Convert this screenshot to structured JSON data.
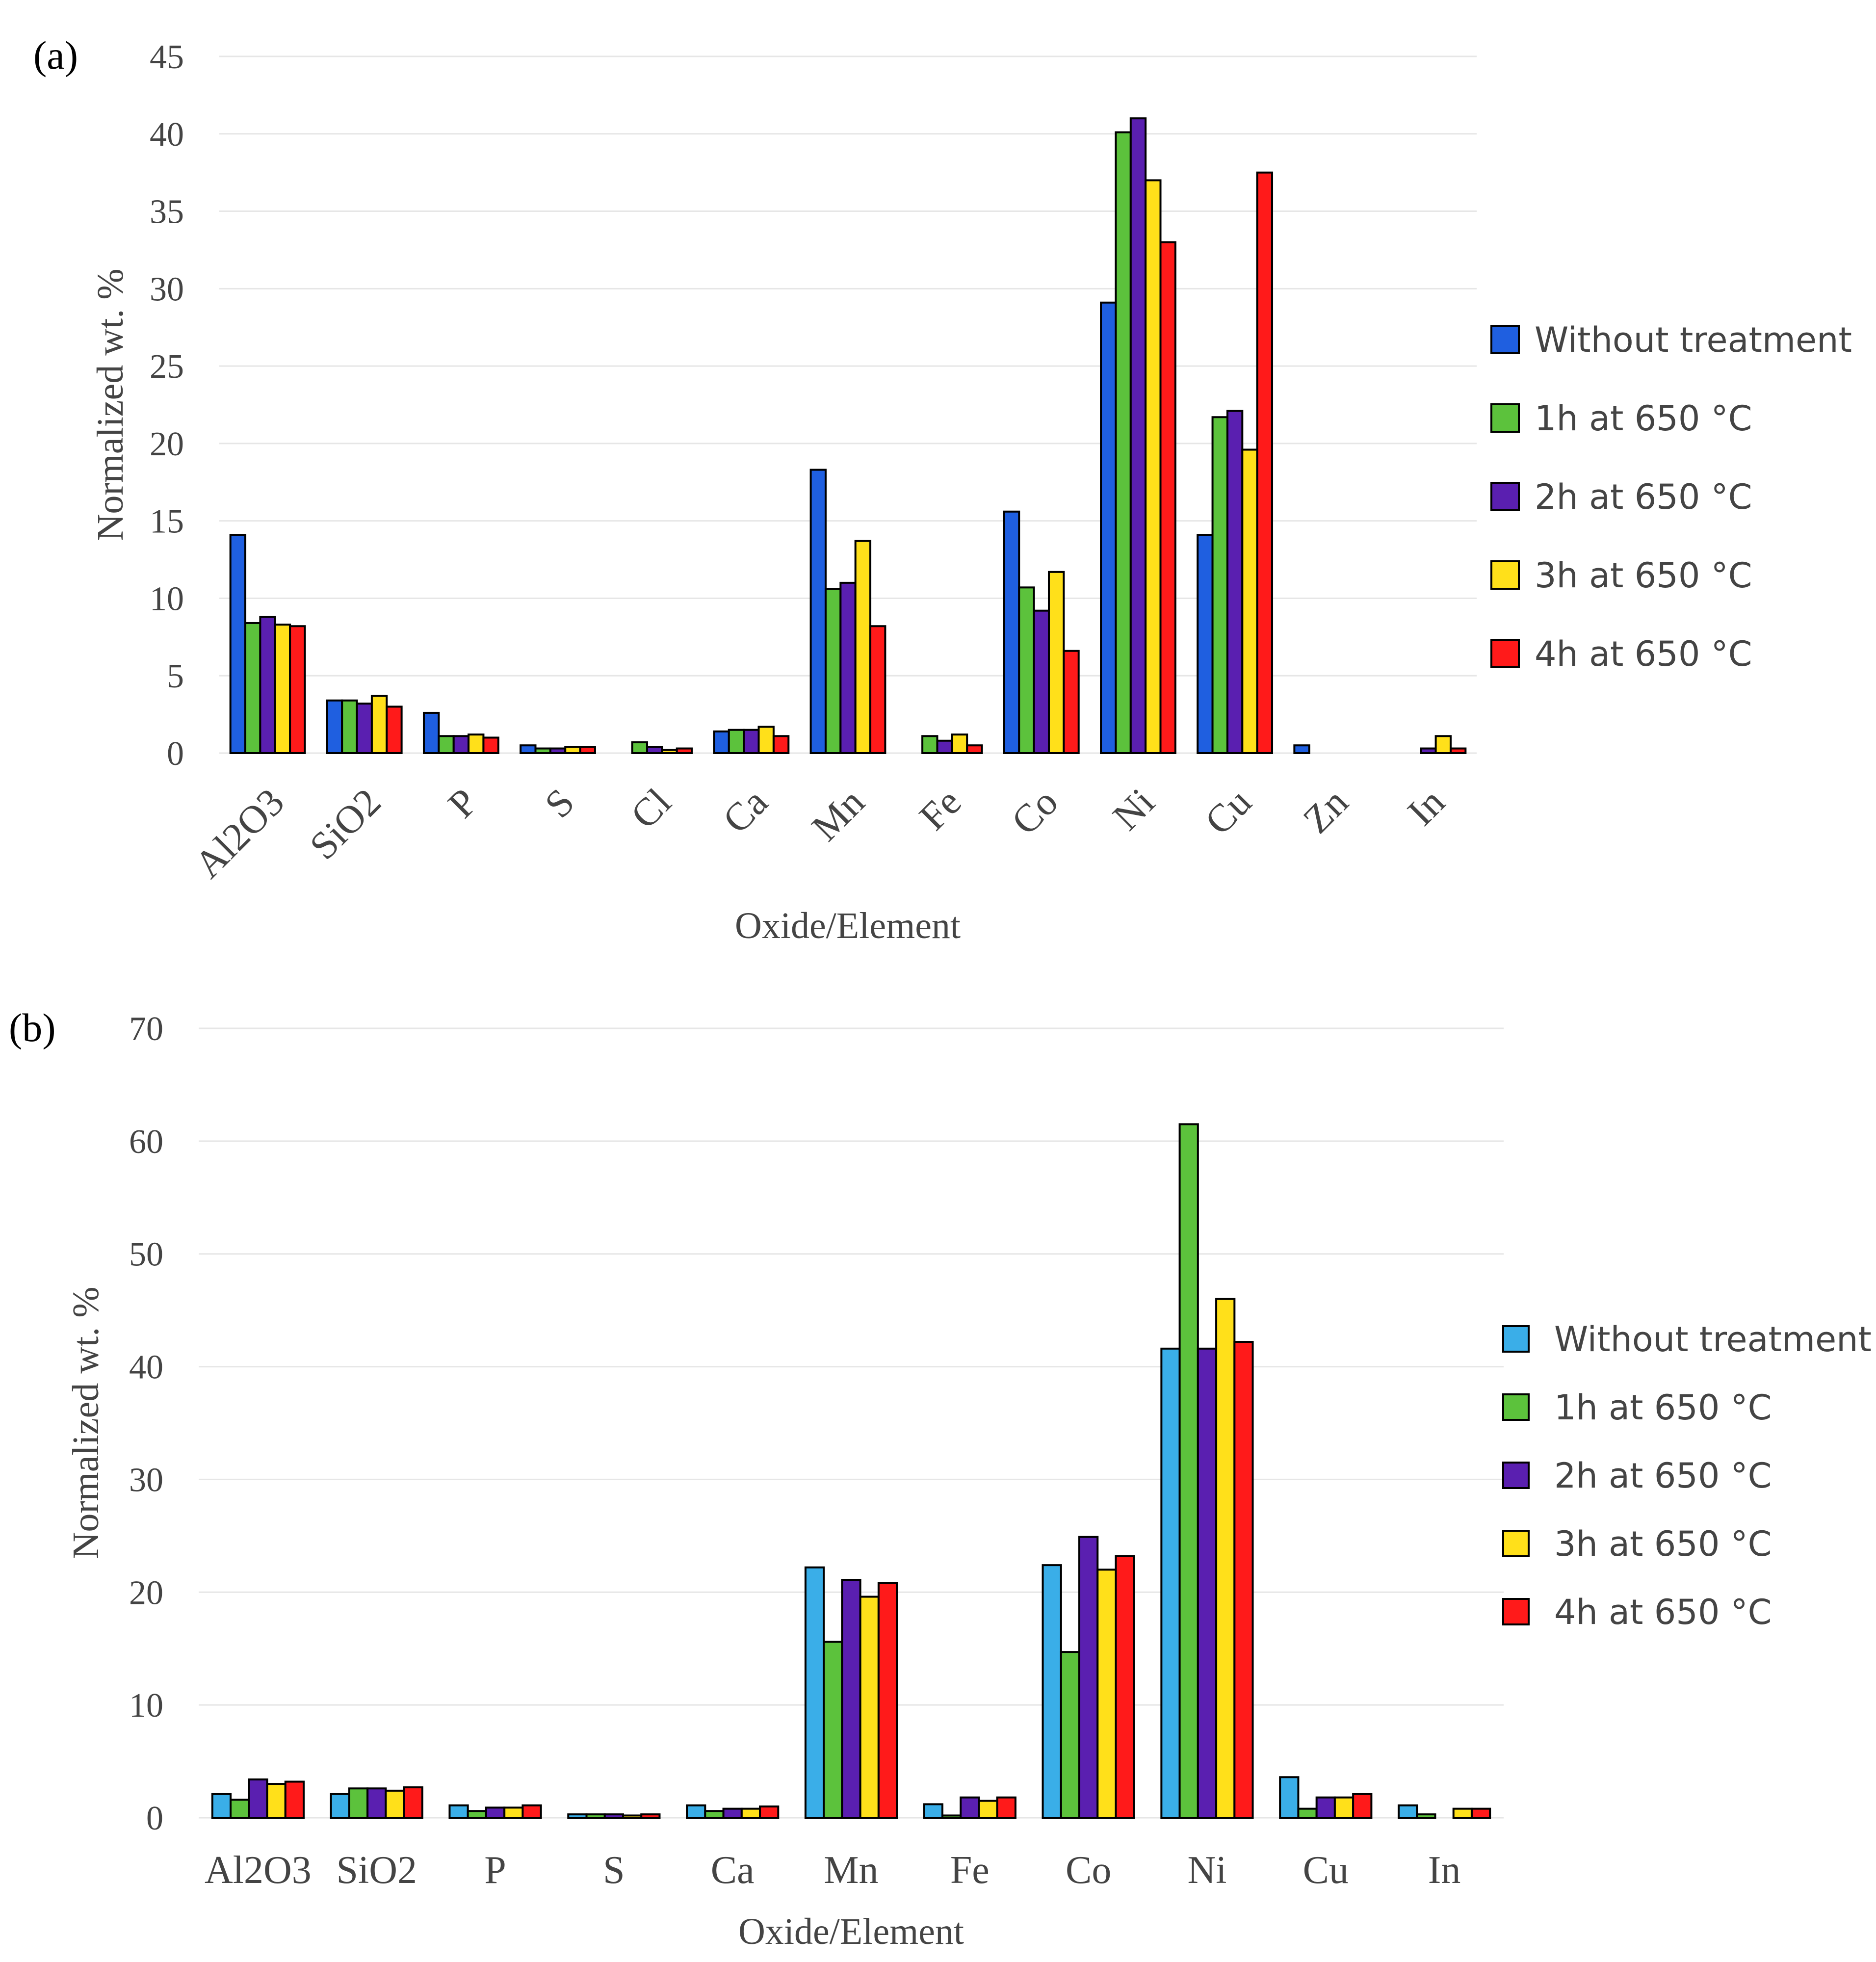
{
  "chart_data": [
    {
      "panel_label": "(a)",
      "type": "bar",
      "categories": [
        "Al2O3",
        "SiO2",
        "P",
        "S",
        "Cl",
        "Ca",
        "Mn",
        "Fe",
        "Co",
        "Ni",
        "Cu",
        "Zn",
        "In"
      ],
      "series": [
        {
          "name": "Without treatment",
          "color": "#1f5fe0",
          "values": [
            14.1,
            3.4,
            2.6,
            0.5,
            0,
            1.4,
            18.3,
            0,
            15.6,
            29.1,
            14.1,
            0.5,
            0
          ]
        },
        {
          "name": "1h at 650 °C",
          "color": "#5cc23c",
          "values": [
            8.4,
            3.4,
            1.1,
            0.3,
            0.7,
            1.5,
            10.6,
            1.1,
            10.7,
            40.1,
            21.7,
            0,
            0
          ]
        },
        {
          "name": "2h at 650 °C",
          "color": "#5a1fb0",
          "values": [
            8.8,
            3.2,
            1.1,
            0.3,
            0.4,
            1.5,
            11.0,
            0.8,
            9.2,
            41.0,
            22.1,
            0,
            0.3
          ]
        },
        {
          "name": "3h at 650 °C",
          "color": "#ffe01a",
          "values": [
            8.3,
            3.7,
            1.2,
            0.4,
            0.2,
            1.7,
            13.7,
            1.2,
            11.7,
            37.0,
            19.6,
            0,
            1.1
          ]
        },
        {
          "name": "4h at 650 °C",
          "color": "#ff1a1a",
          "values": [
            8.2,
            3.0,
            1.0,
            0.4,
            0.3,
            1.1,
            8.2,
            0.5,
            6.6,
            33.0,
            37.5,
            0,
            0.3
          ]
        }
      ],
      "ylabel": "Normalized wt. %",
      "xlabel": "Oxide/Element",
      "ylim": [
        0,
        45
      ],
      "yticks": [
        0,
        5,
        10,
        15,
        20,
        25,
        30,
        35,
        40,
        45
      ],
      "legend_position": "right",
      "grid": true
    },
    {
      "panel_label": "(b)",
      "type": "bar",
      "categories": [
        "Al2O3",
        "SiO2",
        "P",
        "S",
        "Ca",
        "Mn",
        "Fe",
        "Co",
        "Ni",
        "Cu",
        "In"
      ],
      "series": [
        {
          "name": "Without treatment",
          "color": "#3aaee8",
          "values": [
            2.1,
            2.1,
            1.1,
            0.3,
            1.1,
            22.2,
            1.2,
            22.4,
            41.6,
            3.6,
            1.1
          ]
        },
        {
          "name": "1h at 650 °C",
          "color": "#5cc23c",
          "values": [
            1.6,
            2.6,
            0.6,
            0.3,
            0.6,
            15.6,
            0.2,
            14.7,
            61.5,
            0.8,
            0.3
          ]
        },
        {
          "name": "2h at 650 °C",
          "color": "#5a1fb0",
          "values": [
            3.4,
            2.6,
            0.9,
            0.3,
            0.8,
            21.1,
            1.8,
            24.9,
            41.6,
            1.8,
            0
          ]
        },
        {
          "name": "3h at 650 °C",
          "color": "#ffe01a",
          "values": [
            3.0,
            2.4,
            0.9,
            0.2,
            0.8,
            19.6,
            1.5,
            22.0,
            46.0,
            1.8,
            0.8
          ]
        },
        {
          "name": "4h at 650 °C",
          "color": "#ff1a1a",
          "values": [
            3.2,
            2.7,
            1.1,
            0.3,
            1.0,
            20.8,
            1.8,
            23.2,
            42.2,
            2.1,
            0.8
          ]
        }
      ],
      "ylabel": "Normalized wt. %",
      "xlabel": "Oxide/Element",
      "ylim": [
        0,
        70
      ],
      "yticks": [
        0,
        10,
        20,
        30,
        40,
        50,
        60,
        70
      ],
      "legend_position": "right",
      "grid": true
    }
  ]
}
